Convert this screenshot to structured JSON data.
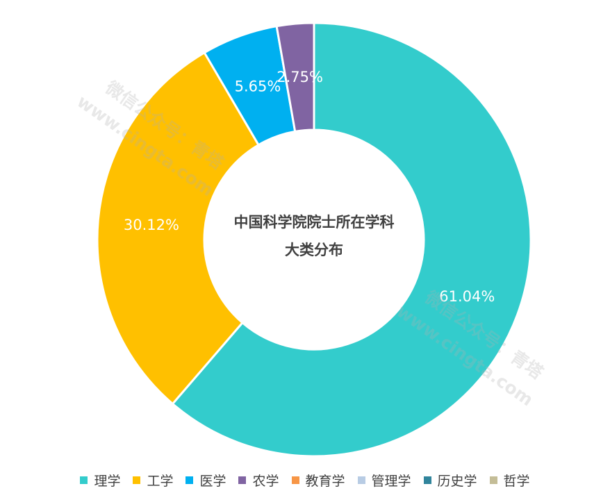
{
  "chart_data": {
    "type": "pie",
    "donut": true,
    "title": "中国科学院院士所在学科大类分布",
    "title_lines": [
      "中国科学院院士所在学科",
      "大类分布"
    ],
    "categories": [
      "理学",
      "工学",
      "医学",
      "农学",
      "教育学",
      "管理学",
      "历史学",
      "哲学"
    ],
    "values": [
      61.04,
      30.12,
      5.65,
      2.75,
      0,
      0,
      0,
      0
    ],
    "labels": [
      "61.04%",
      "30.12%",
      "5.65%",
      "2.75%",
      "",
      "",
      "",
      ""
    ],
    "colors": [
      "#33CCCC",
      "#FFC000",
      "#00B0F0",
      "#8064A2",
      "#F79646",
      "#B8CCE4",
      "#31859C",
      "#C4BD97"
    ],
    "legend_position": "bottom",
    "unit": "%"
  },
  "watermark": {
    "line1": "微信公众号：青塔",
    "line2": "www.cingta.com"
  }
}
